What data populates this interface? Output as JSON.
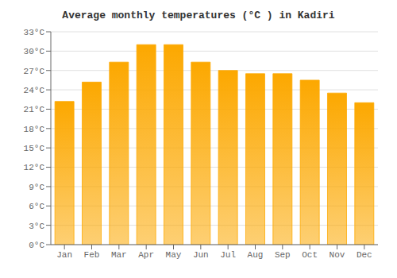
{
  "chart_data": {
    "type": "bar",
    "title": "Average monthly temperatures (°C ) in Kadiri",
    "categories": [
      "Jan",
      "Feb",
      "Mar",
      "Apr",
      "May",
      "Jun",
      "Jul",
      "Aug",
      "Sep",
      "Oct",
      "Nov",
      "Dec"
    ],
    "values": [
      22.2,
      25.2,
      28.3,
      31.0,
      31.0,
      28.3,
      27.0,
      26.5,
      26.5,
      25.5,
      23.5,
      22.0
    ],
    "color": "#FCA800",
    "ylim": [
      0,
      33
    ],
    "yticks": [
      {
        "value": 0,
        "label": "0°C"
      },
      {
        "value": 3,
        "label": "3°C"
      },
      {
        "value": 6,
        "label": "6°C"
      },
      {
        "value": 9,
        "label": "9°C"
      },
      {
        "value": 12,
        "label": "12°C"
      },
      {
        "value": 15,
        "label": "15°C"
      },
      {
        "value": 18,
        "label": "18°C"
      },
      {
        "value": 21,
        "label": "21°C"
      },
      {
        "value": 24,
        "label": "24°C"
      },
      {
        "value": 27,
        "label": "27°C"
      },
      {
        "value": 30,
        "label": "30°C"
      },
      {
        "value": 33,
        "label": "33°C"
      }
    ],
    "grid": true
  }
}
